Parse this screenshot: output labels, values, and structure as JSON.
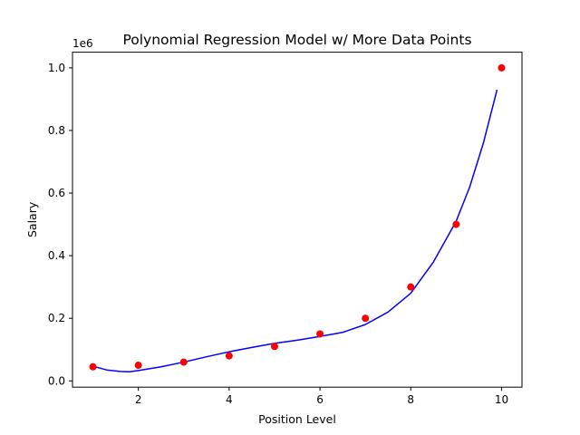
{
  "chart_data": {
    "type": "scatter",
    "title": "Polynomial Regression Model w/ More Data Points",
    "xlabel": "Position Level",
    "ylabel": "Salary",
    "y_offset_label": "1e6",
    "xlim": [
      0.55,
      10.45
    ],
    "ylim": [
      -0.02,
      1.05
    ],
    "x_ticks": [
      2,
      4,
      6,
      8,
      10
    ],
    "y_ticks": [
      0.0,
      0.2,
      0.4,
      0.6,
      0.8,
      1.0
    ],
    "x_tick_labels": [
      "2",
      "4",
      "6",
      "8",
      "10"
    ],
    "y_tick_labels": [
      "0.0",
      "0.2",
      "0.4",
      "0.6",
      "0.8",
      "1.0"
    ],
    "grid": false,
    "series": [
      {
        "kind": "scatter",
        "color": "#ff0000",
        "x": [
          1,
          2,
          3,
          4,
          5,
          6,
          7,
          8,
          9,
          10
        ],
        "y": [
          0.045,
          0.05,
          0.06,
          0.08,
          0.11,
          0.15,
          0.2,
          0.3,
          0.5,
          1.0
        ]
      },
      {
        "kind": "line",
        "color": "#0000ff",
        "x": [
          1.0,
          1.3,
          1.6,
          1.8,
          2.0,
          2.5,
          3.0,
          3.5,
          4.0,
          4.5,
          5.0,
          5.5,
          6.0,
          6.5,
          7.0,
          7.5,
          8.0,
          8.5,
          9.0,
          9.3,
          9.6,
          9.9
        ],
        "y": [
          0.047,
          0.035,
          0.03,
          0.029,
          0.033,
          0.045,
          0.06,
          0.077,
          0.093,
          0.107,
          0.12,
          0.13,
          0.142,
          0.155,
          0.18,
          0.22,
          0.28,
          0.38,
          0.51,
          0.62,
          0.76,
          0.93
        ]
      }
    ]
  }
}
